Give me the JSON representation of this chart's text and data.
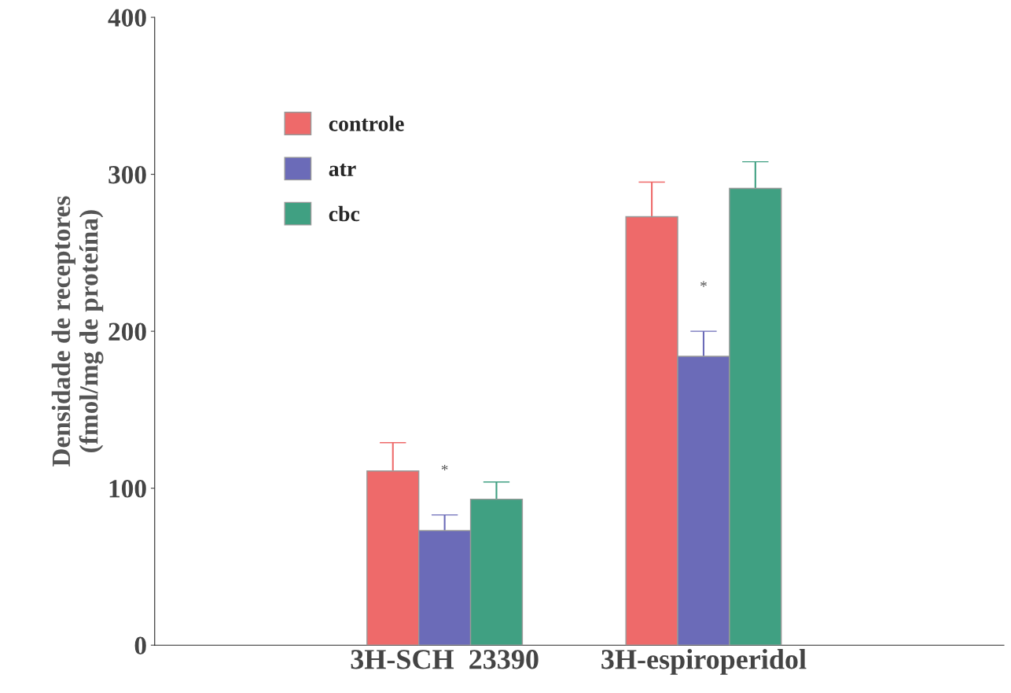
{
  "chart_data": {
    "type": "bar",
    "ylabel": "Densidade de receptores\n(fmol/mg de proteína)",
    "categories": [
      "3H-SCH  23390",
      "3H-espiroperidol"
    ],
    "series": [
      {
        "name": "controle",
        "color": "#ee6a6a",
        "values": [
          111,
          273
        ],
        "errors": [
          18,
          22
        ]
      },
      {
        "name": "atr",
        "color": "#6b6bb8",
        "values": [
          73,
          184
        ],
        "errors": [
          10,
          16
        ]
      },
      {
        "name": "cbc",
        "color": "#40a082",
        "values": [
          93,
          291
        ],
        "errors": [
          11,
          17
        ]
      }
    ],
    "ylim": [
      0,
      400
    ],
    "yticks": [
      0,
      100,
      200,
      300,
      400
    ],
    "grid": false,
    "legend": "top left",
    "annotations": [
      "*",
      "*"
    ]
  }
}
